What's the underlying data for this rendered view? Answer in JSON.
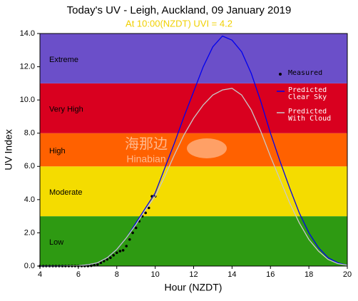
{
  "chart_data": {
    "type": "line",
    "title": "Today's UV - Leigh, Auckland, 09 January 2019",
    "subtitle": "At 10:00(NZDT) UVI = 4.2",
    "x_label": "Hour (NZDT)",
    "y_label": "UV Index",
    "watermark": [
      "海那边",
      "Hinabian"
    ],
    "xlim": [
      4,
      20
    ],
    "xticks": [
      4,
      6,
      8,
      10,
      12,
      14,
      16,
      18,
      20
    ],
    "ylim": [
      0,
      14
    ],
    "yticks": [
      {
        "value": 0,
        "label": "0.0"
      },
      {
        "value": 2,
        "label": "2.0"
      },
      {
        "value": 4,
        "label": "4.0"
      },
      {
        "value": 6,
        "label": "6.0"
      },
      {
        "value": 8,
        "label": "8.0"
      },
      {
        "value": 10,
        "label": "10.0"
      },
      {
        "value": 12,
        "label": "12.0"
      },
      {
        "value": 14,
        "label": "14.0"
      }
    ],
    "bands": [
      {
        "label": "Low",
        "from": 0,
        "to": 3,
        "color": "#2e9a12"
      },
      {
        "label": "Moderate",
        "from": 3,
        "to": 6,
        "color": "#f4dc00"
      },
      {
        "label": "High",
        "from": 6,
        "to": 8,
        "color": "#ff6100"
      },
      {
        "label": "Very High",
        "from": 8,
        "to": 11,
        "color": "#d9001f"
      },
      {
        "label": "Extreme",
        "from": 11,
        "to": 14,
        "color": "#6b4fc9"
      }
    ],
    "series": [
      {
        "name": "Measured",
        "color": "#000000",
        "marker": "dot",
        "x": [
          4,
          4.17,
          4.33,
          4.5,
          4.67,
          4.83,
          5,
          5.17,
          5.33,
          5.5,
          5.67,
          5.83,
          6,
          6.17,
          6.33,
          6.5,
          6.67,
          6.83,
          7,
          7.17,
          7.33,
          7.5,
          7.67,
          7.83,
          8,
          8.17,
          8.33,
          8.5,
          8.67,
          8.83,
          9,
          9.17,
          9.33,
          9.5,
          9.67,
          9.83,
          10
        ],
        "values": [
          0,
          0,
          0,
          0,
          0,
          0,
          0,
          0,
          0,
          0,
          0,
          0,
          0,
          0,
          0,
          0,
          0.02,
          0.05,
          0.1,
          0.2,
          0.3,
          0.4,
          0.5,
          0.65,
          0.8,
          0.9,
          0.95,
          1.2,
          1.6,
          2.0,
          2.3,
          2.7,
          3.0,
          3.2,
          3.5,
          4.2,
          4.2
        ]
      },
      {
        "name": "Predicted Clear Sky",
        "color": "#0000ee",
        "marker": "line",
        "x": [
          4,
          5,
          6,
          6.5,
          7,
          7.5,
          8,
          8.5,
          9,
          9.5,
          10,
          10.5,
          11,
          11.5,
          12,
          12.5,
          13,
          13.5,
          14,
          14.5,
          15,
          15.5,
          16,
          16.5,
          17,
          17.5,
          18,
          18.5,
          19,
          19.5,
          20
        ],
        "values": [
          0,
          0,
          0.02,
          0.08,
          0.2,
          0.5,
          1.0,
          1.7,
          2.6,
          3.5,
          4.4,
          5.9,
          7.4,
          9.0,
          10.5,
          12.0,
          13.2,
          13.85,
          13.6,
          12.9,
          11.6,
          9.9,
          8.0,
          6.3,
          4.7,
          3.2,
          2.0,
          1.1,
          0.5,
          0.2,
          0.05
        ]
      },
      {
        "name": "Predicted With Cloud",
        "color": "#c8c8c8",
        "marker": "line",
        "x": [
          4,
          5,
          6,
          6.5,
          7,
          7.5,
          8,
          8.5,
          9,
          9.5,
          10,
          10.5,
          11,
          11.5,
          12,
          12.5,
          13,
          13.5,
          14,
          14.5,
          15,
          15.5,
          16,
          16.5,
          17,
          17.5,
          18,
          18.5,
          19,
          19.5,
          20
        ],
        "values": [
          0,
          0,
          0.02,
          0.08,
          0.2,
          0.5,
          1.0,
          1.7,
          2.5,
          3.4,
          4.2,
          5.4,
          6.7,
          7.9,
          8.9,
          9.7,
          10.3,
          10.6,
          10.7,
          10.3,
          9.4,
          8.1,
          6.6,
          5.2,
          3.8,
          2.6,
          1.6,
          0.9,
          0.4,
          0.15,
          0.05
        ]
      }
    ]
  }
}
